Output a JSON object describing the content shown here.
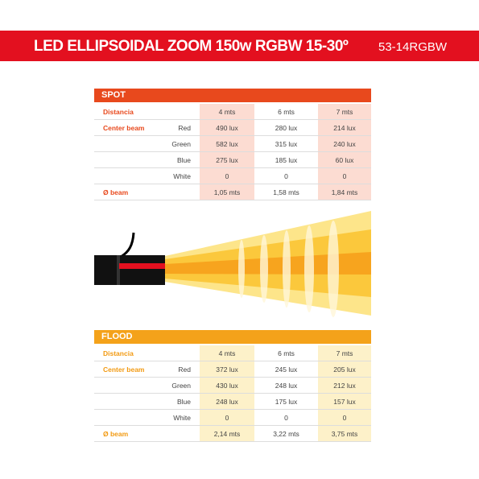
{
  "header": {
    "title": "LED ELLIPSOIDAL ZOOM 150w RGBW 15-30º",
    "code": "53-14RGBW"
  },
  "spot": {
    "title": "SPOT",
    "rows": [
      {
        "label": "Distancia",
        "cells": [
          "4 mts",
          "6 mts",
          "7 mts"
        ]
      },
      {
        "label": "Center beam",
        "sublabel": "Red",
        "cells": [
          "490 lux",
          "280 lux",
          "214 lux"
        ]
      },
      {
        "sublabel": "Green",
        "cells": [
          "582 lux",
          "315 lux",
          "240 lux"
        ]
      },
      {
        "sublabel": "Blue",
        "cells": [
          "275 lux",
          "185 lux",
          "60 lux"
        ]
      },
      {
        "sublabel": "White",
        "cells": [
          "0",
          "0",
          "0"
        ]
      },
      {
        "label": "Ø beam",
        "cells": [
          "1,05 mts",
          "1,58 mts",
          "1,84 mts"
        ]
      }
    ]
  },
  "flood": {
    "title": "FLOOD",
    "rows": [
      {
        "label": "Distancia",
        "cells": [
          "4 mts",
          "6 mts",
          "7 mts"
        ]
      },
      {
        "label": "Center beam",
        "sublabel": "Red",
        "cells": [
          "372 lux",
          "245 lux",
          "205 lux"
        ]
      },
      {
        "sublabel": "Green",
        "cells": [
          "430 lux",
          "248 lux",
          "212 lux"
        ]
      },
      {
        "sublabel": "Blue",
        "cells": [
          "248 lux",
          "175 lux",
          "157 lux"
        ]
      },
      {
        "sublabel": "White",
        "cells": [
          "0",
          "0",
          "0"
        ]
      },
      {
        "label": "Ø beam",
        "cells": [
          "2,14 mts",
          "3,22 mts",
          "3,75 mts"
        ]
      }
    ]
  }
}
